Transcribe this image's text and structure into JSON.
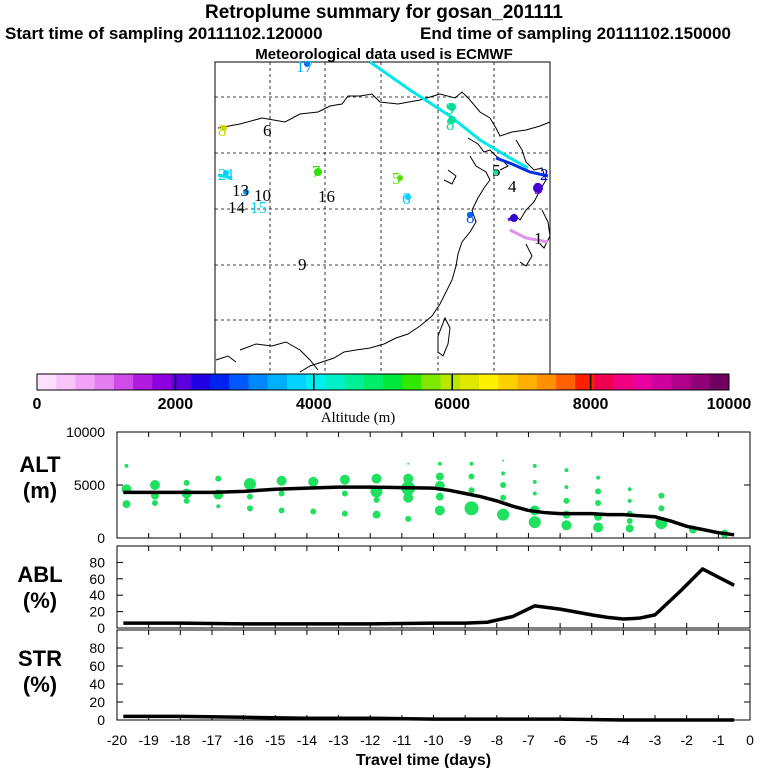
{
  "titles": {
    "main": "Retroplume summary for gosan_201111",
    "start": "Start time of sampling 20111102.120000",
    "end": "End time of sampling 20111102.150000",
    "met": "Meteorological data used is ECMWF"
  },
  "colorbar": {
    "ticks": [
      "0",
      "2000",
      "4000",
      "6000",
      "8000",
      "10000"
    ],
    "label": "Altitude (m)",
    "colors": [
      "#fde0fd",
      "#f9c4fb",
      "#f3a3f7",
      "#e57ef0",
      "#d04ce8",
      "#b01ce0",
      "#8d00df",
      "#5d00e0",
      "#2200e6",
      "#0022f0",
      "#0058ff",
      "#0088ff",
      "#00b0ff",
      "#00d4ff",
      "#00eeee",
      "#00f0c8",
      "#00f09a",
      "#00ec6a",
      "#00e83a",
      "#30e800",
      "#80e800",
      "#b8e800",
      "#e0e800",
      "#fff000",
      "#ffd000",
      "#ffb000",
      "#ff9000",
      "#ff6000",
      "#ff2000",
      "#f00050",
      "#f00080",
      "#e800a0",
      "#d000a0",
      "#b0008a",
      "#900078",
      "#700060"
    ]
  },
  "map": {
    "labels": [
      {
        "t": "17",
        "c": "#00a8ff"
      },
      {
        "t": "9",
        "c": "#00e090"
      },
      {
        "t": "8",
        "c": "#00e090"
      },
      {
        "t": "8",
        "c": "#c8d800"
      },
      {
        "t": "6",
        "c": "#000000"
      },
      {
        "t": "7",
        "c": "#30e000"
      },
      {
        "t": "21",
        "c": "#00d0ff"
      },
      {
        "t": "13",
        "c": "#000000"
      },
      {
        "t": "10",
        "c": "#000000"
      },
      {
        "t": "14",
        "c": "#000000"
      },
      {
        "t": "15",
        "c": "#00d8f0"
      },
      {
        "t": "16",
        "c": "#000000"
      },
      {
        "t": "5",
        "c": "#50e000"
      },
      {
        "t": "5",
        "c": "#000000"
      },
      {
        "t": "6",
        "c": "#00d0ff"
      },
      {
        "t": "4",
        "c": "#000000"
      },
      {
        "t": "8",
        "c": "#0060ff"
      },
      {
        "t": "9",
        "c": "#000000"
      },
      {
        "t": "1",
        "c": "#000000"
      },
      {
        "t": "3",
        "c": "#6000e0"
      },
      {
        "t": "2",
        "c": "#0000d0"
      }
    ]
  },
  "panels": {
    "alt": {
      "line1": "ALT",
      "line2": "(m)"
    },
    "abl": {
      "line1": "ABL",
      "line2": "(%)"
    },
    "str": {
      "line1": "STR",
      "line2": "(%)"
    }
  },
  "chart_data": [
    {
      "type": "line",
      "title": "ALT",
      "ylabel": "m",
      "ylim": [
        0,
        10000
      ],
      "yticks": [
        "10000",
        "5000",
        "0"
      ],
      "x": [
        -19.8,
        -19,
        -18,
        -17,
        -16,
        -15,
        -14,
        -13,
        -12,
        -11,
        -10,
        -9.5,
        -9,
        -8.5,
        -8,
        -7.5,
        -7,
        -6.5,
        -6,
        -5.5,
        -5,
        -4.5,
        -4,
        -3.5,
        -3,
        -2.5,
        -2,
        -1.5,
        -1,
        -0.5
      ],
      "series": [
        {
          "name": "mean altitude",
          "values": [
            4300,
            4300,
            4300,
            4300,
            4400,
            4600,
            4700,
            4800,
            4800,
            4750,
            4700,
            4500,
            4200,
            3900,
            3500,
            3000,
            2600,
            2400,
            2300,
            2300,
            2300,
            2200,
            2200,
            2100,
            2000,
            1600,
            1100,
            800,
            500,
            300
          ]
        }
      ],
      "scatter": [
        {
          "x": -19.7,
          "y": 6800,
          "s": 2
        },
        {
          "x": -19.7,
          "y": 4600,
          "s": 5
        },
        {
          "x": -19.7,
          "y": 3200,
          "s": 4
        },
        {
          "x": -18.8,
          "y": 5000,
          "s": 5
        },
        {
          "x": -18.8,
          "y": 4000,
          "s": 4
        },
        {
          "x": -18.8,
          "y": 3300,
          "s": 3
        },
        {
          "x": -17.8,
          "y": 5200,
          "s": 3
        },
        {
          "x": -17.8,
          "y": 4200,
          "s": 5
        },
        {
          "x": -17.8,
          "y": 3500,
          "s": 3
        },
        {
          "x": -16.8,
          "y": 5600,
          "s": 3
        },
        {
          "x": -16.8,
          "y": 4100,
          "s": 5
        },
        {
          "x": -16.8,
          "y": 3000,
          "s": 2
        },
        {
          "x": -15.8,
          "y": 5100,
          "s": 6
        },
        {
          "x": -15.8,
          "y": 3900,
          "s": 3
        },
        {
          "x": -15.8,
          "y": 2800,
          "s": 3
        },
        {
          "x": -14.8,
          "y": 5400,
          "s": 5
        },
        {
          "x": -14.8,
          "y": 4200,
          "s": 3
        },
        {
          "x": -14.8,
          "y": 2600,
          "s": 3
        },
        {
          "x": -13.8,
          "y": 5300,
          "s": 5
        },
        {
          "x": -13.8,
          "y": 2500,
          "s": 3
        },
        {
          "x": -12.8,
          "y": 5500,
          "s": 5
        },
        {
          "x": -12.8,
          "y": 4200,
          "s": 3
        },
        {
          "x": -12.8,
          "y": 2300,
          "s": 3
        },
        {
          "x": -11.8,
          "y": 5600,
          "s": 5
        },
        {
          "x": -11.8,
          "y": 4400,
          "s": 6
        },
        {
          "x": -11.8,
          "y": 3600,
          "s": 3
        },
        {
          "x": -11.8,
          "y": 2200,
          "s": 4
        },
        {
          "x": -10.8,
          "y": 7000,
          "s": 1
        },
        {
          "x": -10.8,
          "y": 5600,
          "s": 5
        },
        {
          "x": -10.8,
          "y": 4700,
          "s": 7
        },
        {
          "x": -10.8,
          "y": 3800,
          "s": 5
        },
        {
          "x": -10.8,
          "y": 1800,
          "s": 3
        },
        {
          "x": -9.8,
          "y": 7000,
          "s": 2
        },
        {
          "x": -9.8,
          "y": 5800,
          "s": 4
        },
        {
          "x": -9.8,
          "y": 4900,
          "s": 5
        },
        {
          "x": -9.8,
          "y": 3900,
          "s": 4
        },
        {
          "x": -9.8,
          "y": 2600,
          "s": 5
        },
        {
          "x": -8.8,
          "y": 7000,
          "s": 2
        },
        {
          "x": -8.8,
          "y": 5800,
          "s": 3
        },
        {
          "x": -8.8,
          "y": 4500,
          "s": 3
        },
        {
          "x": -8.8,
          "y": 2800,
          "s": 7
        },
        {
          "x": -7.8,
          "y": 7300,
          "s": 1
        },
        {
          "x": -7.8,
          "y": 6100,
          "s": 2
        },
        {
          "x": -7.8,
          "y": 5000,
          "s": 3
        },
        {
          "x": -7.8,
          "y": 3800,
          "s": 3
        },
        {
          "x": -7.8,
          "y": 2200,
          "s": 6
        },
        {
          "x": -6.8,
          "y": 6800,
          "s": 2
        },
        {
          "x": -6.8,
          "y": 5300,
          "s": 2
        },
        {
          "x": -6.8,
          "y": 4200,
          "s": 2
        },
        {
          "x": -6.8,
          "y": 2600,
          "s": 5
        },
        {
          "x": -6.8,
          "y": 1500,
          "s": 6
        },
        {
          "x": -5.8,
          "y": 6400,
          "s": 2
        },
        {
          "x": -5.8,
          "y": 4800,
          "s": 2
        },
        {
          "x": -5.8,
          "y": 3500,
          "s": 3
        },
        {
          "x": -5.8,
          "y": 2200,
          "s": 4
        },
        {
          "x": -5.8,
          "y": 1200,
          "s": 5
        },
        {
          "x": -4.8,
          "y": 5700,
          "s": 2
        },
        {
          "x": -4.8,
          "y": 4400,
          "s": 3
        },
        {
          "x": -4.8,
          "y": 3300,
          "s": 3
        },
        {
          "x": -4.8,
          "y": 2000,
          "s": 4
        },
        {
          "x": -4.8,
          "y": 1000,
          "s": 5
        },
        {
          "x": -3.8,
          "y": 4600,
          "s": 2
        },
        {
          "x": -3.8,
          "y": 3500,
          "s": 2
        },
        {
          "x": -3.8,
          "y": 2300,
          "s": 3
        },
        {
          "x": -3.8,
          "y": 1600,
          "s": 3
        },
        {
          "x": -3.8,
          "y": 900,
          "s": 4
        },
        {
          "x": -2.8,
          "y": 4000,
          "s": 3
        },
        {
          "x": -2.8,
          "y": 2800,
          "s": 3
        },
        {
          "x": -2.8,
          "y": 1400,
          "s": 6
        },
        {
          "x": -1.8,
          "y": 800,
          "s": 4
        },
        {
          "x": -0.8,
          "y": 400,
          "s": 4
        }
      ]
    },
    {
      "type": "line",
      "title": "ABL",
      "ylabel": "%",
      "ylim": [
        0,
        100
      ],
      "yticks": [
        "80",
        "60",
        "40",
        "20",
        "0"
      ],
      "x": [
        -19.8,
        -18,
        -16,
        -14,
        -12,
        -10,
        -9,
        -8.3,
        -7.5,
        -6.8,
        -6,
        -5,
        -4.5,
        -4,
        -3.5,
        -3,
        -2.2,
        -1.5,
        -0.5
      ],
      "series": [
        {
          "name": "ABL fraction",
          "values": [
            6,
            6,
            5,
            5,
            5,
            6,
            6,
            7,
            14,
            27,
            23,
            16,
            13,
            11,
            12,
            16,
            45,
            72,
            52
          ]
        }
      ]
    },
    {
      "type": "line",
      "title": "STR",
      "ylabel": "%",
      "ylim": [
        0,
        100
      ],
      "yticks": [
        "80",
        "60",
        "40",
        "20",
        "0"
      ],
      "x": [
        -19.8,
        -18,
        -16,
        -14,
        -12,
        -10,
        -8,
        -6,
        -4,
        -2,
        -0.5
      ],
      "series": [
        {
          "name": "STR fraction",
          "values": [
            4,
            4,
            3,
            2,
            2,
            1,
            1,
            1,
            0,
            0,
            0
          ]
        }
      ],
      "xticks": [
        "-20",
        "-19",
        "-18",
        "-17",
        "-16",
        "-15",
        "-14",
        "-13",
        "-12",
        "-11",
        "-10",
        "-9",
        "-8",
        "-7",
        "-6",
        "-5",
        "-4",
        "-3",
        "-2",
        "-1",
        "0"
      ],
      "xlabel": "Travel time (days)"
    }
  ]
}
